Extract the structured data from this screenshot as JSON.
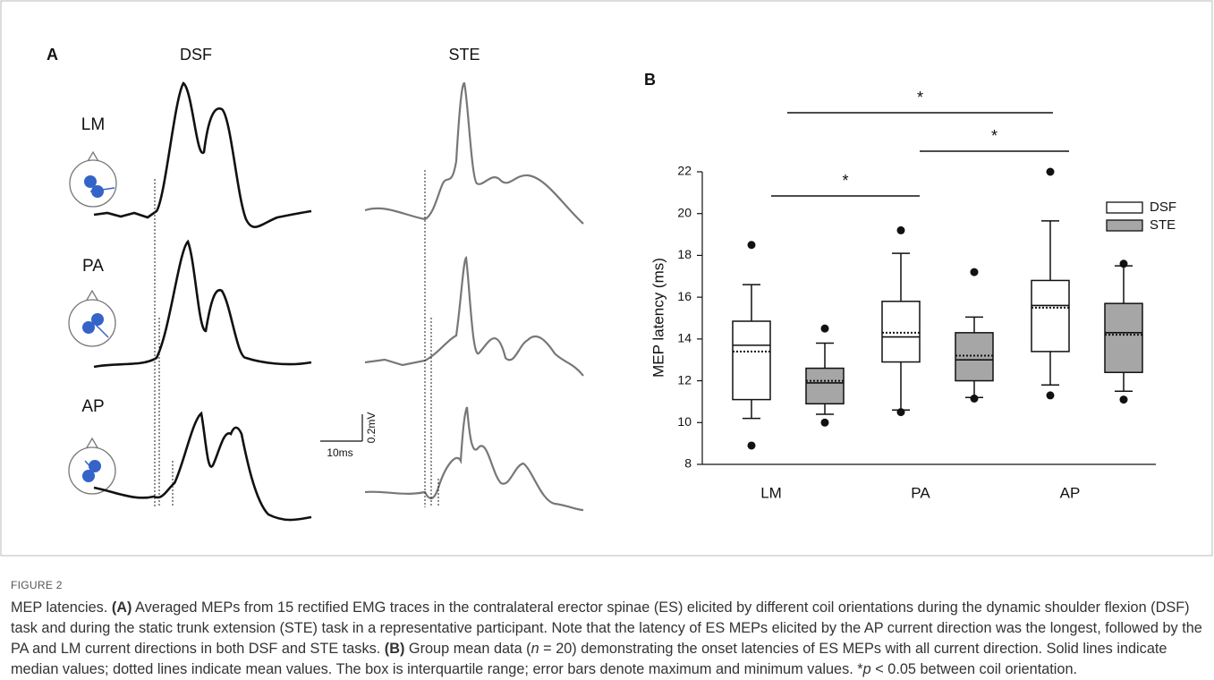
{
  "panel_a": {
    "label": "A",
    "columns": [
      "DSF",
      "STE"
    ],
    "rows": [
      "LM",
      "PA",
      "AP"
    ],
    "scale_y": "0.2mV",
    "scale_x": "10ms"
  },
  "chart_data": {
    "type": "box",
    "panel_label": "B",
    "y_label": "MEP latency (ms)",
    "categories": [
      "LM",
      "PA",
      "AP"
    ],
    "series": [
      {
        "name": "DSF",
        "color": "#ffffff",
        "min": [
          10.2,
          10.6,
          11.8
        ],
        "q1": [
          11.1,
          12.9,
          13.4
        ],
        "median": [
          13.7,
          14.1,
          15.6
        ],
        "mean": [
          13.4,
          14.3,
          15.5
        ],
        "q3": [
          14.85,
          15.8,
          16.8
        ],
        "max": [
          16.6,
          18.1,
          19.65
        ],
        "outliers": [
          [
            18.5,
            8.9
          ],
          [
            19.2,
            10.5
          ],
          [
            22.0,
            11.3
          ]
        ]
      },
      {
        "name": "STE",
        "color": "#a6a6a6",
        "min": [
          10.4,
          11.2,
          11.5
        ],
        "q1": [
          10.9,
          12.0,
          12.4
        ],
        "median": [
          11.9,
          13.0,
          14.3
        ],
        "mean": [
          12.0,
          13.2,
          14.2
        ],
        "q3": [
          12.6,
          14.3,
          15.7
        ],
        "max": [
          13.8,
          15.05,
          17.5
        ],
        "outliers": [
          [
            14.5,
            10.0
          ],
          [
            17.2,
            11.15
          ],
          [
            17.6,
            11.1
          ]
        ]
      }
    ],
    "ylim": [
      8,
      22
    ],
    "yticks": [
      8,
      10,
      12,
      14,
      16,
      18,
      20,
      22
    ],
    "legend": "upper right",
    "significance_labels": [
      "*",
      "*",
      "*"
    ]
  },
  "caption": {
    "label": "FIGURE 2",
    "segments": [
      "MEP latencies. ",
      "(A)",
      " Averaged MEPs from 15 rectified EMG traces in the contralateral erector spinae (ES) elicited by different coil orientations during the dynamic shoulder flexion (DSF) task and during the static trunk extension (STE) task in a representative participant. Note that the latency of ES MEPs elicited by the AP current direction was the longest, followed by the PA and LM current directions in both DSF and STE tasks. ",
      "(B)",
      " Group mean data (",
      "n",
      " = 20) demonstrating the onset latencies of ES MEPs with all current direction. Solid lines indicate median values; dotted lines indicate mean values. The box is interquartile range; error bars denote maximum and minimum values. *",
      "p",
      " < 0.05 between coil orientation."
    ]
  }
}
